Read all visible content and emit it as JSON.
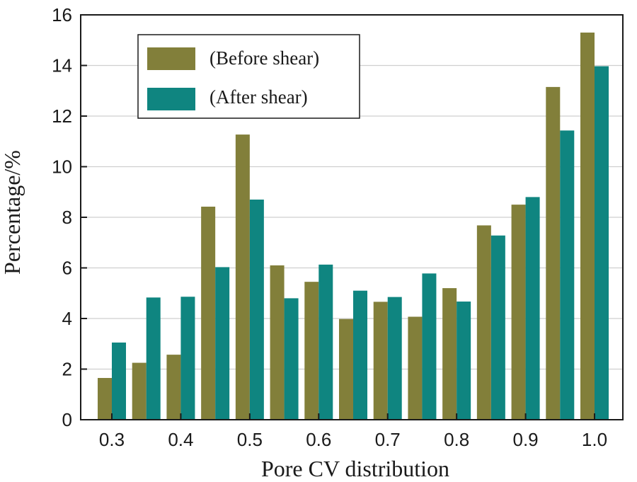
{
  "chart_data": {
    "type": "bar",
    "title": "",
    "xlabel": "Pore CV distribution",
    "ylabel": "Percentage/%",
    "ylim": [
      0,
      16
    ],
    "yticks": [
      0,
      2,
      4,
      6,
      8,
      10,
      12,
      14,
      16
    ],
    "xtick_labels": [
      "0.3",
      "0.4",
      "0.5",
      "0.6",
      "0.7",
      "0.8",
      "0.9",
      "1.0"
    ],
    "categories": [
      "0.30",
      "0.35",
      "0.40",
      "0.45",
      "0.50",
      "0.55",
      "0.60",
      "0.65",
      "0.70",
      "0.75",
      "0.80",
      "0.85",
      "0.90",
      "0.95",
      "1.00"
    ],
    "grid": true,
    "legend_position": "top-left",
    "series": [
      {
        "name": "(Before shear)",
        "color": "#827f3a",
        "values": [
          1.65,
          2.25,
          2.57,
          8.42,
          11.27,
          6.1,
          5.45,
          3.98,
          4.66,
          4.07,
          5.2,
          7.68,
          8.5,
          13.15,
          15.3
        ]
      },
      {
        "name": "(After shear)",
        "color": "#0f8580",
        "values": [
          3.05,
          4.83,
          4.86,
          6.03,
          8.7,
          4.8,
          6.13,
          5.1,
          4.85,
          5.78,
          4.67,
          7.28,
          8.8,
          11.43,
          13.97
        ]
      }
    ]
  }
}
